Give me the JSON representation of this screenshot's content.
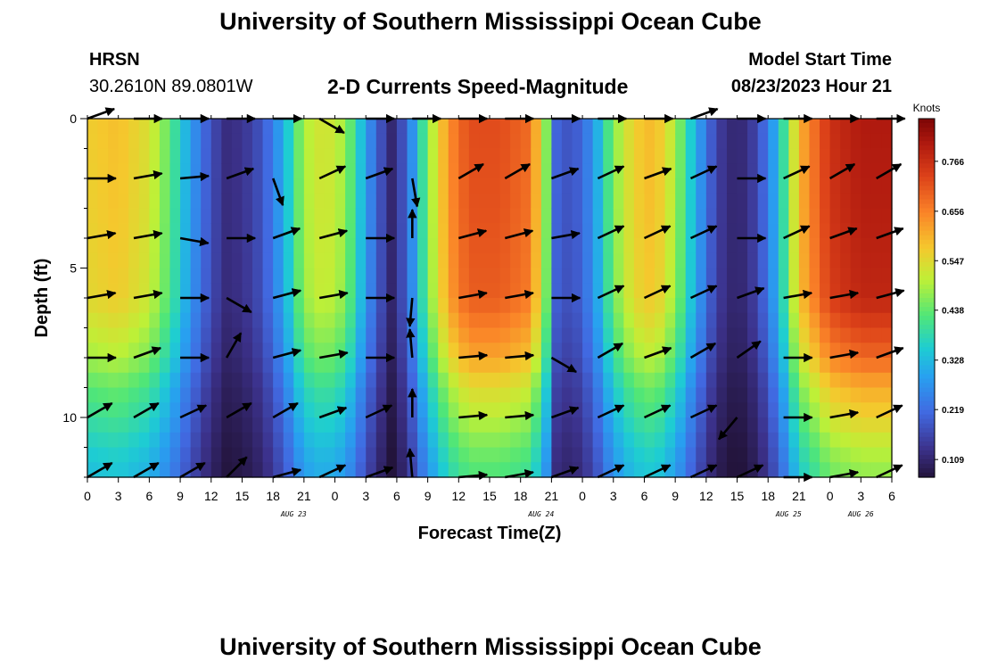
{
  "header": {
    "title_top": "University of Southern Mississippi Ocean Cube",
    "station": "HRSN",
    "coords": "30.2610N  89.0801W",
    "subtitle": "2-D Currents Speed-Magnitude",
    "model_label": "Model Start Time",
    "model_time": "08/23/2023 Hour 21",
    "title_bottom": "University of Southern Mississippi Ocean Cube"
  },
  "chart_data": {
    "type": "heatmap",
    "title": "2-D Currents Speed-Magnitude",
    "xlabel": "Forecast Time(Z)",
    "ylabel": "Depth (ft)",
    "x_ticks": [
      "0",
      "3",
      "6",
      "9",
      "12",
      "15",
      "18",
      "21",
      "0",
      "3",
      "6",
      "9",
      "12",
      "15",
      "18",
      "21",
      "0",
      "3",
      "6",
      "9",
      "12",
      "15",
      "18",
      "21",
      "0",
      "3",
      "6"
    ],
    "date_labels": [
      "AUG 23",
      "AUG 24",
      "AUG 25",
      "AUG 26"
    ],
    "x_range_hours": [
      0,
      78
    ],
    "y_ticks": [
      "0",
      "5",
      "10"
    ],
    "y_range_ft": [
      0,
      12
    ],
    "colorbar": {
      "unit": "Knots",
      "ticks": [
        "0.109",
        "0.219",
        "0.328",
        "0.438",
        "0.547",
        "0.656",
        "0.766"
      ],
      "range": [
        0.07,
        0.86
      ]
    },
    "time_speed_profile": [
      {
        "h": 0,
        "v": 0.55
      },
      {
        "h": 3,
        "v": 0.57
      },
      {
        "h": 6,
        "v": 0.52
      },
      {
        "h": 8,
        "v": 0.42
      },
      {
        "h": 10,
        "v": 0.28
      },
      {
        "h": 12,
        "v": 0.17
      },
      {
        "h": 13.5,
        "v": 0.12
      },
      {
        "h": 15,
        "v": 0.13
      },
      {
        "h": 17,
        "v": 0.18
      },
      {
        "h": 19,
        "v": 0.3
      },
      {
        "h": 21,
        "v": 0.48
      },
      {
        "h": 23,
        "v": 0.52
      },
      {
        "h": 25,
        "v": 0.47
      },
      {
        "h": 26.5,
        "v": 0.33
      },
      {
        "h": 28,
        "v": 0.2
      },
      {
        "h": 29.5,
        "v": 0.11
      },
      {
        "h": 31,
        "v": 0.2
      },
      {
        "h": 33,
        "v": 0.45
      },
      {
        "h": 35,
        "v": 0.62
      },
      {
        "h": 37,
        "v": 0.7
      },
      {
        "h": 40,
        "v": 0.7
      },
      {
        "h": 43,
        "v": 0.66
      },
      {
        "h": 44.5,
        "v": 0.45
      },
      {
        "h": 45.5,
        "v": 0.2
      },
      {
        "h": 47,
        "v": 0.17
      },
      {
        "h": 49,
        "v": 0.26
      },
      {
        "h": 51,
        "v": 0.45
      },
      {
        "h": 53,
        "v": 0.55
      },
      {
        "h": 55,
        "v": 0.58
      },
      {
        "h": 57,
        "v": 0.48
      },
      {
        "h": 59,
        "v": 0.3
      },
      {
        "h": 61,
        "v": 0.15
      },
      {
        "h": 63,
        "v": 0.1
      },
      {
        "h": 65,
        "v": 0.16
      },
      {
        "h": 67,
        "v": 0.32
      },
      {
        "h": 69,
        "v": 0.58
      },
      {
        "h": 72,
        "v": 0.74
      },
      {
        "h": 75,
        "v": 0.78
      },
      {
        "h": 78,
        "v": 0.78
      }
    ],
    "depth_speed_factor": [
      {
        "d": 0,
        "f": 1.03
      },
      {
        "d": 3,
        "f": 1.02
      },
      {
        "d": 6,
        "f": 1.0
      },
      {
        "d": 8,
        "f": 0.88
      },
      {
        "d": 9,
        "f": 0.78
      },
      {
        "d": 10,
        "f": 0.72
      },
      {
        "d": 11,
        "f": 0.65
      },
      {
        "d": 12,
        "f": 0.6
      }
    ],
    "arrow_times_h": [
      0,
      4.5,
      9,
      13.5,
      18,
      22.5,
      27,
      31.5,
      36,
      40.5,
      45,
      49.5,
      54,
      58.5,
      63,
      67.5,
      72,
      76.5
    ],
    "arrow_depths_ft": [
      0,
      2,
      4,
      6,
      8,
      10,
      12
    ],
    "arrow_rows_deg": [
      [
        -20,
        0,
        0,
        0,
        0,
        30,
        0,
        0,
        0,
        0,
        0,
        0,
        0,
        -20,
        0,
        0,
        0,
        0
      ],
      [
        0,
        -10,
        -5,
        -20,
        70,
        -25,
        -20,
        80,
        -30,
        -30,
        -20,
        -25,
        -20,
        -25,
        0,
        -25,
        -30,
        -30
      ],
      [
        -10,
        -10,
        10,
        0,
        -20,
        -15,
        0,
        -90,
        -15,
        -15,
        -10,
        -25,
        -25,
        -25,
        0,
        -25,
        -20,
        -20
      ],
      [
        -10,
        -10,
        0,
        30,
        -15,
        -10,
        0,
        95,
        -10,
        -10,
        0,
        -25,
        -25,
        -25,
        -20,
        -10,
        -10,
        -15
      ],
      [
        0,
        -20,
        0,
        -60,
        -15,
        -10,
        0,
        -95,
        -5,
        -5,
        30,
        -30,
        -20,
        -30,
        -35,
        0,
        -10,
        -20
      ],
      [
        -30,
        -30,
        -25,
        -30,
        -30,
        -20,
        -25,
        -90,
        -5,
        -5,
        -20,
        -25,
        -25,
        -25,
        130,
        0,
        -10,
        -25
      ],
      [
        -30,
        -30,
        -30,
        -45,
        -15,
        -25,
        -20,
        -95,
        -5,
        -10,
        -20,
        -25,
        -25,
        -25,
        -25,
        0,
        -10,
        -25
      ]
    ]
  }
}
